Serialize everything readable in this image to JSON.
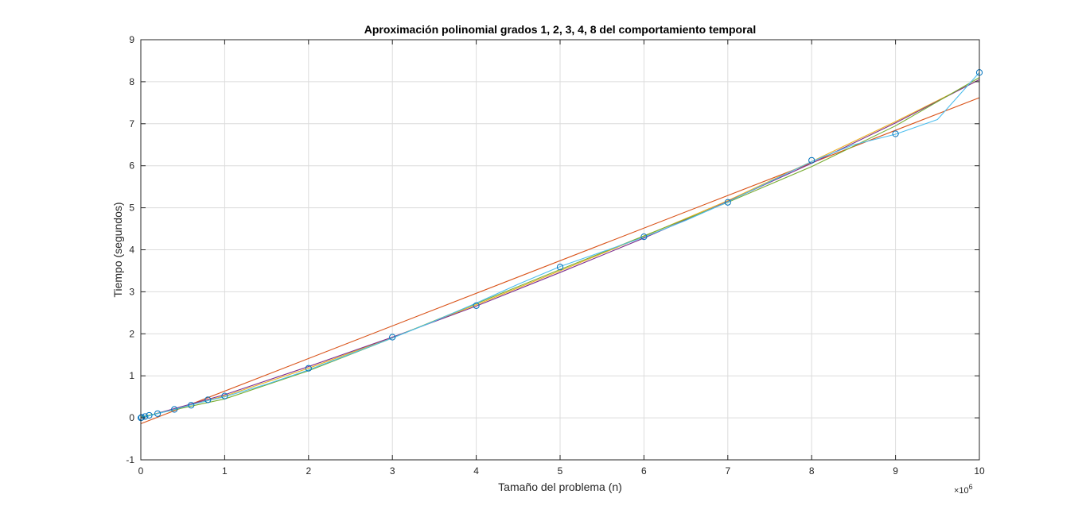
{
  "chart_data": {
    "type": "line",
    "title": "Aproximación polinomial grados 1, 2, 3, 4, 8 del comportamiento temporal",
    "xlabel": "Tamaño del problema (n)",
    "ylabel": "Tiempo (segundos)",
    "x_exponent_label": "×10",
    "x_exponent_power": "6",
    "x_scale": 1000000,
    "xlim": [
      0,
      10000000
    ],
    "ylim": [
      -1,
      9
    ],
    "x_ticks": [
      0,
      1000000,
      2000000,
      3000000,
      4000000,
      5000000,
      6000000,
      7000000,
      8000000,
      9000000,
      10000000
    ],
    "x_tick_labels": [
      "0",
      "1",
      "2",
      "3",
      "4",
      "5",
      "6",
      "7",
      "8",
      "9",
      "10"
    ],
    "y_ticks": [
      -1,
      0,
      1,
      2,
      3,
      4,
      5,
      6,
      7,
      8,
      9
    ],
    "y_tick_labels": [
      "-1",
      "0",
      "1",
      "2",
      "3",
      "4",
      "5",
      "6",
      "7",
      "8",
      "9"
    ],
    "grid": true,
    "legend": "none",
    "points": {
      "marker": "circle",
      "color": "#0072BD",
      "x": [
        1000,
        10000,
        50000,
        100000,
        200000,
        400000,
        600000,
        800000,
        1000000,
        2000000,
        3000000,
        4000000,
        5000000,
        6000000,
        7000000,
        8000000,
        9000000,
        10000000
      ],
      "y": [
        0.0,
        0.01,
        0.03,
        0.06,
        0.1,
        0.2,
        0.3,
        0.43,
        0.52,
        1.18,
        1.92,
        2.67,
        3.59,
        4.31,
        5.13,
        6.13,
        6.76,
        8.22
      ]
    },
    "series": [
      {
        "color": "#D95319",
        "x": [
          0,
          10000000
        ],
        "y": [
          -0.14,
          7.62
        ]
      },
      {
        "color": "#EDB120",
        "x": [
          0,
          1000000,
          2000000,
          3000000,
          4000000,
          5000000,
          6000000,
          7000000,
          8000000,
          9000000,
          10000000
        ],
        "y": [
          0.0,
          0.52,
          1.18,
          1.91,
          2.69,
          3.5,
          4.32,
          5.17,
          6.1,
          7.05,
          8.05
        ]
      },
      {
        "color": "#7E2F8E",
        "x": [
          0,
          1000000,
          2000000,
          3000000,
          4000000,
          5000000,
          6000000,
          7000000,
          8000000,
          9000000,
          10000000
        ],
        "y": [
          0.0,
          0.55,
          1.22,
          1.92,
          2.66,
          3.46,
          4.28,
          5.15,
          6.06,
          7.02,
          8.05
        ]
      },
      {
        "color": "#77AC30",
        "x": [
          0,
          1000000,
          2000000,
          3000000,
          4000000,
          5000000,
          6000000,
          7000000,
          8000000,
          9000000,
          10000000
        ],
        "y": [
          0.02,
          0.45,
          1.12,
          1.9,
          2.72,
          3.53,
          4.33,
          5.13,
          5.98,
          6.95,
          8.1
        ]
      },
      {
        "color": "#4DBEEE",
        "x": [
          0,
          200000,
          400000,
          600000,
          800000,
          1000000,
          1500000,
          2000000,
          2500000,
          3000000,
          3500000,
          4000000,
          4500000,
          5000000,
          5500000,
          6000000,
          6500000,
          7000000,
          7500000,
          8000000,
          8500000,
          9000000,
          9500000,
          10000000
        ],
        "y": [
          0.0,
          0.1,
          0.2,
          0.31,
          0.41,
          0.5,
          0.8,
          1.14,
          1.52,
          1.9,
          2.3,
          2.73,
          3.18,
          3.6,
          3.95,
          4.3,
          4.7,
          5.14,
          5.62,
          6.1,
          6.5,
          6.75,
          7.1,
          8.22
        ]
      }
    ]
  }
}
